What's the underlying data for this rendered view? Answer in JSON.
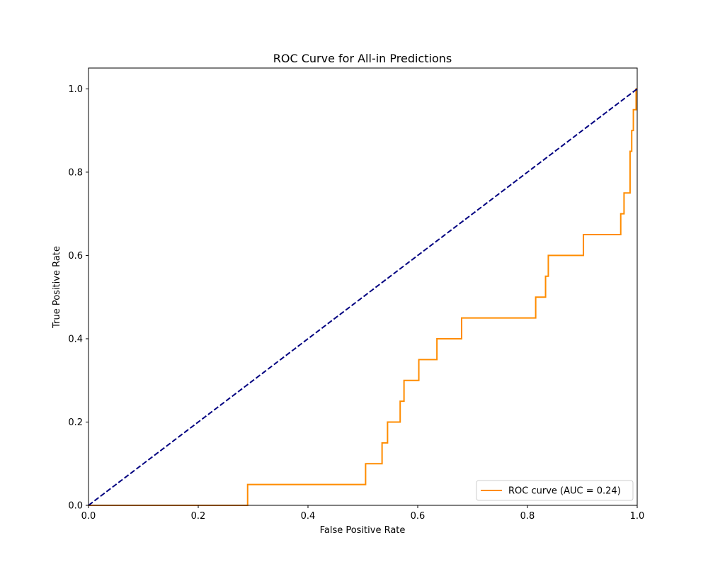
{
  "chart_data": {
    "type": "line",
    "title": "ROC Curve for All-in Predictions",
    "xlabel": "False Positive Rate",
    "ylabel": "True Positive Rate",
    "xlim": [
      0.0,
      1.0
    ],
    "ylim": [
      0.0,
      1.05
    ],
    "xticks": [
      "0.0",
      "0.2",
      "0.4",
      "0.6",
      "0.8",
      "1.0"
    ],
    "yticks": [
      "0.0",
      "0.2",
      "0.4",
      "0.6",
      "0.8",
      "1.0"
    ],
    "grid": false,
    "legend_position": "lower-right",
    "series": [
      {
        "name": "ROC curve (AUC = 0.24)",
        "color": "#ff8c00",
        "style": "solid",
        "x": [
          0.0,
          0.29,
          0.29,
          0.505,
          0.505,
          0.535,
          0.535,
          0.545,
          0.545,
          0.568,
          0.568,
          0.575,
          0.575,
          0.602,
          0.602,
          0.635,
          0.635,
          0.68,
          0.68,
          0.815,
          0.815,
          0.833,
          0.833,
          0.838,
          0.838,
          0.902,
          0.902,
          0.97,
          0.97,
          0.976,
          0.976,
          0.987,
          0.987,
          0.99,
          0.99,
          0.993,
          0.993,
          0.998,
          0.998,
          1.0
        ],
        "y": [
          0.0,
          0.0,
          0.05,
          0.05,
          0.1,
          0.1,
          0.15,
          0.15,
          0.2,
          0.2,
          0.25,
          0.25,
          0.3,
          0.3,
          0.35,
          0.35,
          0.4,
          0.4,
          0.45,
          0.45,
          0.5,
          0.5,
          0.55,
          0.55,
          0.6,
          0.6,
          0.65,
          0.65,
          0.7,
          0.7,
          0.75,
          0.75,
          0.85,
          0.85,
          0.9,
          0.9,
          0.95,
          0.95,
          1.0,
          1.0
        ]
      },
      {
        "name": "",
        "color": "#000080",
        "style": "dashed",
        "x": [
          0.0,
          1.0
        ],
        "y": [
          0.0,
          1.0
        ]
      }
    ],
    "legend": [
      {
        "label": "ROC curve (AUC = 0.24)",
        "color": "#ff8c00"
      }
    ]
  }
}
